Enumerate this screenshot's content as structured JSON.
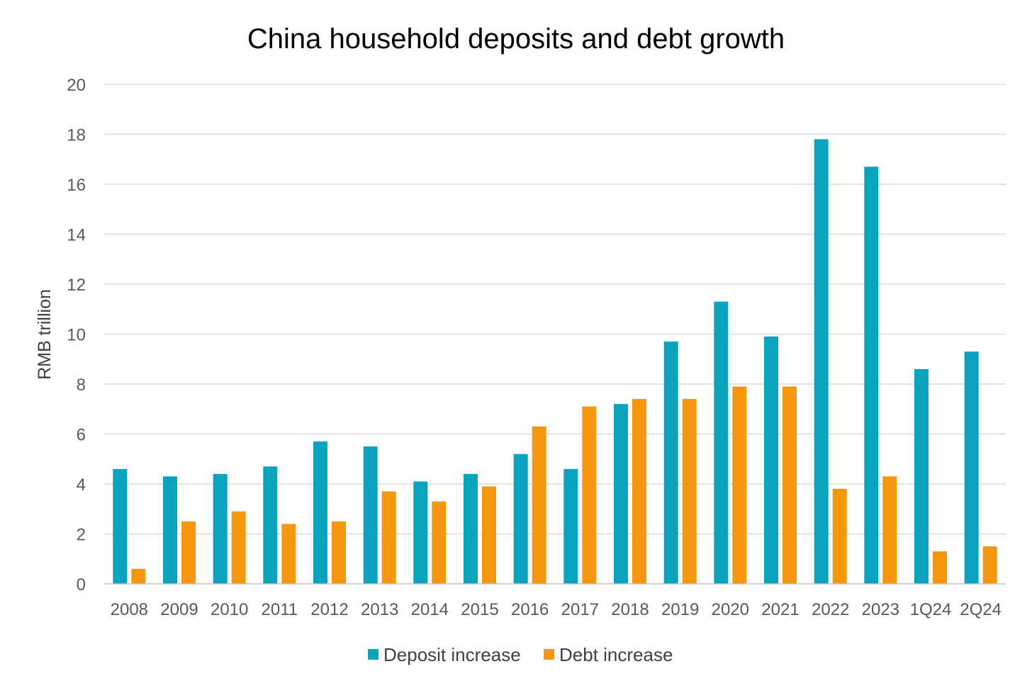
{
  "chart_data": {
    "type": "bar",
    "title": "China household deposits and debt growth",
    "xlabel": "",
    "ylabel": "RMB trillion",
    "ylim": [
      0,
      20
    ],
    "yticks": [
      0,
      2,
      4,
      6,
      8,
      10,
      12,
      14,
      16,
      18,
      20
    ],
    "grid": true,
    "legend_position": "bottom",
    "categories": [
      "2008",
      "2009",
      "2010",
      "2011",
      "2012",
      "2013",
      "2014",
      "2015",
      "2016",
      "2017",
      "2018",
      "2019",
      "2020",
      "2021",
      "2022",
      "2023",
      "1Q24",
      "2Q24"
    ],
    "series": [
      {
        "name": "Deposit increase",
        "color": "#0aa3be",
        "values": [
          4.6,
          4.3,
          4.4,
          4.7,
          5.7,
          5.5,
          4.1,
          4.4,
          5.2,
          4.6,
          7.2,
          9.7,
          11.3,
          9.9,
          17.8,
          16.7,
          8.6,
          9.3
        ]
      },
      {
        "name": "Debt increase",
        "color": "#f5960f",
        "values": [
          0.6,
          2.5,
          2.9,
          2.4,
          2.5,
          3.7,
          3.3,
          3.9,
          6.3,
          7.1,
          7.4,
          7.4,
          7.9,
          7.9,
          3.8,
          4.3,
          1.3,
          1.5
        ]
      }
    ]
  }
}
